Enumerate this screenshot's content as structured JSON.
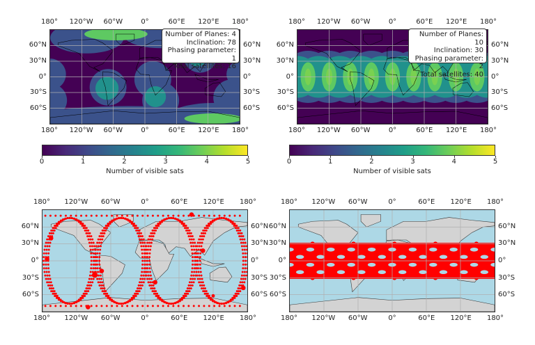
{
  "chart_data": [
    {
      "type": "heatmap",
      "projection": "PlateCarree",
      "xlim": [
        -180,
        180
      ],
      "ylim": [
        -90,
        90
      ],
      "grid": true,
      "x_ticks": [
        "180°",
        "120°W",
        "60°W",
        "0°",
        "60°E",
        "120°E",
        "180°"
      ],
      "y_ticks": [
        "60°N",
        "30°N",
        "0°",
        "30°S",
        "60°S"
      ],
      "annotation": {
        "planes": "Number of Planes: 4",
        "inclination": "Inclination: 78",
        "phasing": "Phasing parameter: 1",
        "total": "Total satellites: 16"
      },
      "colorbar": {
        "label": "Number of visible sats",
        "ticks": [
          "0",
          "1",
          "2",
          "3",
          "4",
          "5"
        ],
        "range": [
          0,
          5
        ],
        "colormap": "viridis"
      }
    },
    {
      "type": "heatmap",
      "projection": "PlateCarree",
      "xlim": [
        -180,
        180
      ],
      "ylim": [
        -90,
        90
      ],
      "grid": true,
      "x_ticks": [
        "180°",
        "120°W",
        "60°W",
        "0°",
        "60°E",
        "120°E",
        "180°"
      ],
      "y_ticks": [
        "60°N",
        "30°N",
        "0°",
        "30°S",
        "60°S"
      ],
      "annotation": {
        "planes": "Number of Planes: 10",
        "inclination": "Inclination: 30",
        "phasing": "Phasing parameter: 2",
        "total": "Total satellites: 40"
      },
      "colorbar": {
        "label": "Number of visible sats",
        "ticks": [
          "0",
          "1",
          "2",
          "3",
          "4",
          "5"
        ],
        "range": [
          0,
          5
        ],
        "colormap": "viridis"
      }
    },
    {
      "type": "scatter",
      "projection": "PlateCarree",
      "xlim": [
        -180,
        180
      ],
      "ylim": [
        -90,
        90
      ],
      "grid": true,
      "x_ticks": [
        "180°",
        "120°W",
        "60°W",
        "0°",
        "60°E",
        "120°E",
        "180°"
      ],
      "y_ticks": [
        "60°N",
        "30°N",
        "0°",
        "30°S",
        "60°S"
      ],
      "marker_color": "#ff0000",
      "ocean_color": "#add8e6",
      "land_color": "#d3d3d3"
    },
    {
      "type": "scatter",
      "projection": "PlateCarree",
      "xlim": [
        -180,
        180
      ],
      "ylim": [
        -90,
        90
      ],
      "grid": true,
      "x_ticks": [
        "180°",
        "120°W",
        "60°W",
        "0°",
        "60°E",
        "120°E",
        "180°"
      ],
      "y_ticks": [
        "60°N",
        "30°N",
        "0°",
        "30°S",
        "60°S"
      ],
      "marker_color": "#ff0000",
      "ocean_color": "#add8e6",
      "land_color": "#d3d3d3"
    }
  ]
}
